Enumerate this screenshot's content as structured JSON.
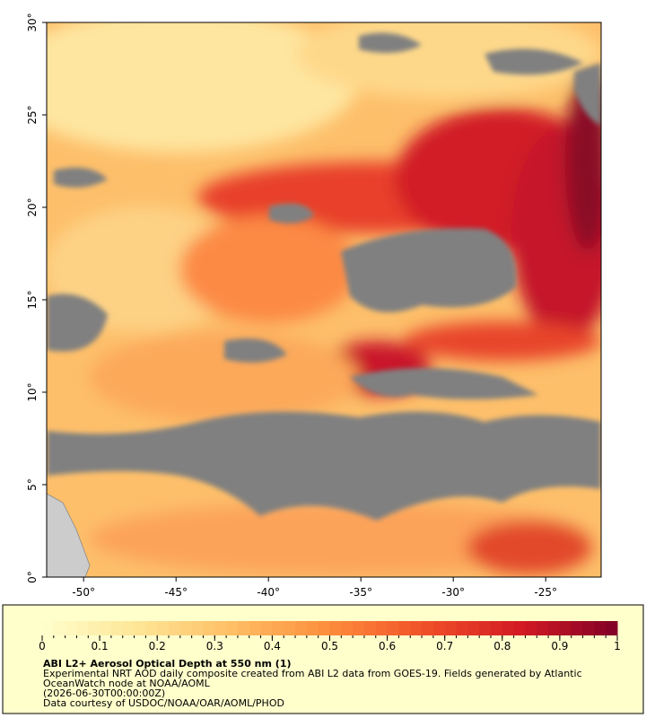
{
  "map": {
    "xlim": [
      -52,
      -22
    ],
    "ylim": [
      0,
      30
    ],
    "xticks": [
      {
        "value": -50,
        "label": "-50°"
      },
      {
        "value": -45,
        "label": "-45°"
      },
      {
        "value": -40,
        "label": "-40°"
      },
      {
        "value": -35,
        "label": "-35°"
      },
      {
        "value": -30,
        "label": "-30°"
      },
      {
        "value": -25,
        "label": "-25°"
      }
    ],
    "yticks": [
      {
        "value": 0,
        "label": "0°"
      },
      {
        "value": 5,
        "label": "5°"
      },
      {
        "value": 10,
        "label": "10°"
      },
      {
        "value": 15,
        "label": "15°"
      },
      {
        "value": 20,
        "label": "20°"
      },
      {
        "value": 25,
        "label": "25°"
      },
      {
        "value": 30,
        "label": "30°"
      }
    ]
  },
  "colorbar": {
    "range": [
      0,
      1
    ],
    "ticks": [
      0,
      0.1,
      0.2,
      0.3,
      0.4,
      0.5,
      0.6,
      0.7,
      0.8,
      0.9,
      1
    ]
  },
  "caption": {
    "title": "ABI L2+ Aerosol Optical Depth at 550 nm (1)",
    "lines": [
      "Experimental NRT AOD daily composite created from ABI L2 data from GOES-19. Fields generated by Atlantic",
      "OceanWatch node at NOAA/AOML",
      "(2026-06-30T00:00:00Z)",
      "Data courtesy of USDOC/NOAA/OAR/AOML/PHOD"
    ]
  }
}
